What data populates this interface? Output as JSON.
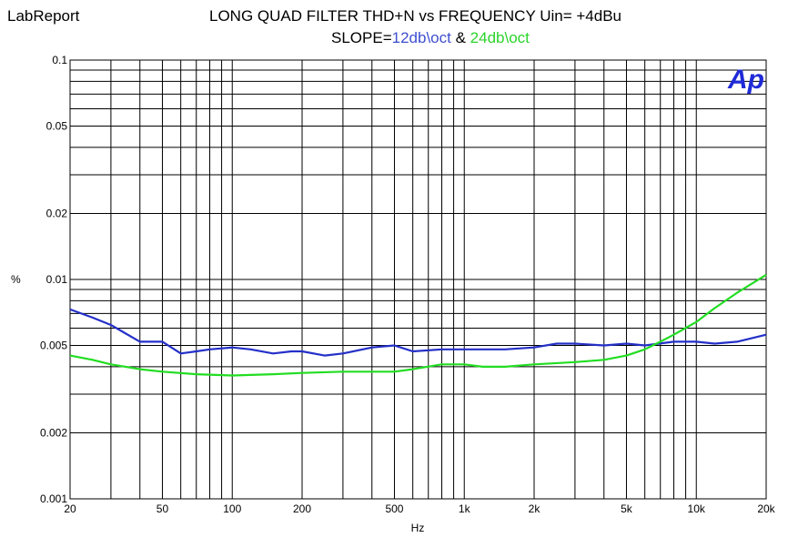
{
  "header": {
    "brand": "LabReport",
    "title": "LONG QUAD FILTER THD+N vs FREQUENCY Uin= +4dBu",
    "subtitle_prefix": "SLOPE=",
    "subtitle_series1": "12db\\oct",
    "subtitle_join": " & ",
    "subtitle_series2": "24db\\oct",
    "logo": "Ap"
  },
  "colors": {
    "series1": "#2430c8",
    "series2": "#22dd22",
    "subtitle1": "#3e4fd0",
    "subtitle2": "#2bd42b",
    "grid": "#000000",
    "logo": "#1f2bd6"
  },
  "chart_data": {
    "type": "line",
    "title": "LONG QUAD FILTER THD+N vs FREQUENCY Uin= +4dBu",
    "subtitle": "SLOPE=12db\\oct & 24db\\oct",
    "xlabel": "Hz",
    "ylabel": "%",
    "xscale": "log",
    "yscale": "log",
    "xlim": [
      20,
      20000
    ],
    "ylim": [
      0.001,
      0.1
    ],
    "grid": true,
    "legend": "none",
    "x_ticks": [
      20,
      50,
      100,
      200,
      500,
      1000,
      2000,
      5000,
      10000,
      20000
    ],
    "x_tick_labels": [
      "20",
      "50",
      "100",
      "200",
      "500",
      "1k",
      "2k",
      "5k",
      "10k",
      "20k"
    ],
    "y_ticks": [
      0.001,
      0.002,
      0.005,
      0.01,
      0.02,
      0.05,
      0.1
    ],
    "y_tick_labels": [
      "0.001",
      "0.002",
      "0.005",
      "0.01",
      "0.02",
      "0.05",
      "0.1"
    ],
    "series": [
      {
        "color": "#2430c8",
        "points": [
          [
            20,
            0.0073
          ],
          [
            25,
            0.0067
          ],
          [
            30,
            0.0062
          ],
          [
            40,
            0.0052
          ],
          [
            50,
            0.0052
          ],
          [
            60,
            0.0046
          ],
          [
            70,
            0.0047
          ],
          [
            80,
            0.0048
          ],
          [
            100,
            0.0049
          ],
          [
            120,
            0.0048
          ],
          [
            150,
            0.0046
          ],
          [
            180,
            0.0047
          ],
          [
            200,
            0.0047
          ],
          [
            250,
            0.0045
          ],
          [
            300,
            0.0046
          ],
          [
            400,
            0.0049
          ],
          [
            500,
            0.005
          ],
          [
            600,
            0.0047
          ],
          [
            800,
            0.0048
          ],
          [
            1000,
            0.0048
          ],
          [
            1500,
            0.0048
          ],
          [
            2000,
            0.0049
          ],
          [
            2500,
            0.0051
          ],
          [
            3000,
            0.0051
          ],
          [
            4000,
            0.005
          ],
          [
            5000,
            0.0051
          ],
          [
            6000,
            0.005
          ],
          [
            8000,
            0.0052
          ],
          [
            10000,
            0.0052
          ],
          [
            12000,
            0.0051
          ],
          [
            15000,
            0.0052
          ],
          [
            20000,
            0.0056
          ]
        ]
      },
      {
        "color": "#22dd22",
        "points": [
          [
            20,
            0.0045
          ],
          [
            25,
            0.0043
          ],
          [
            30,
            0.0041
          ],
          [
            40,
            0.0039
          ],
          [
            50,
            0.0038
          ],
          [
            70,
            0.0037
          ],
          [
            100,
            0.00365
          ],
          [
            150,
            0.0037
          ],
          [
            200,
            0.00375
          ],
          [
            300,
            0.0038
          ],
          [
            500,
            0.0038
          ],
          [
            600,
            0.0039
          ],
          [
            800,
            0.0041
          ],
          [
            1000,
            0.0041
          ],
          [
            1200,
            0.004
          ],
          [
            1500,
            0.004
          ],
          [
            2000,
            0.0041
          ],
          [
            3000,
            0.0042
          ],
          [
            4000,
            0.0043
          ],
          [
            5000,
            0.0045
          ],
          [
            6000,
            0.0048
          ],
          [
            7000,
            0.0052
          ],
          [
            8000,
            0.0056
          ],
          [
            10000,
            0.0064
          ],
          [
            12000,
            0.0074
          ],
          [
            15000,
            0.0087
          ],
          [
            20000,
            0.0105
          ]
        ]
      }
    ]
  }
}
